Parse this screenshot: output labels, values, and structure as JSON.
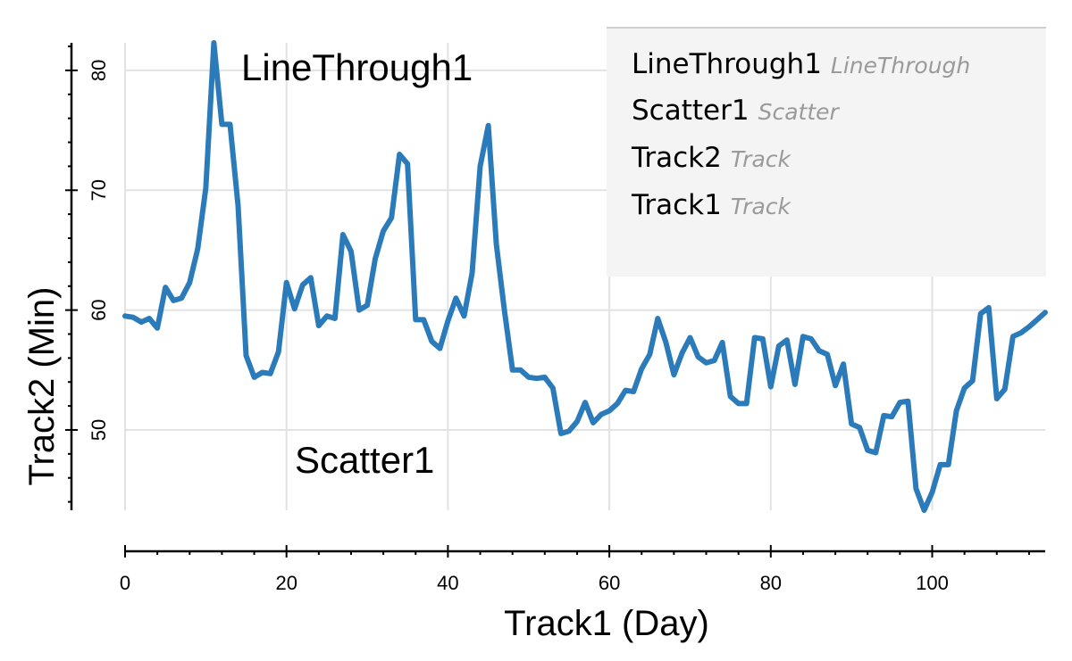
{
  "chart_data": {
    "type": "line",
    "xlabel": "Track1 (Day)",
    "ylabel": "Track2 (Min)",
    "xlim": [
      0,
      114
    ],
    "ylim": [
      43.3,
      82.3
    ],
    "xticks": [
      0,
      20,
      40,
      60,
      80,
      100
    ],
    "yticks": [
      50,
      60,
      70,
      80
    ],
    "grid": true,
    "annotations": [
      "LineThrough1",
      "Scatter1"
    ],
    "legend": {
      "placement": "top-right",
      "entries": [
        {
          "name": "LineThrough1",
          "type": "LineThrough"
        },
        {
          "name": "Scatter1",
          "type": "Scatter"
        },
        {
          "name": "Track2",
          "type": "Track"
        },
        {
          "name": "Track1",
          "type": "Track"
        }
      ]
    },
    "series": [
      {
        "color": "#2b7bba",
        "x": [
          0,
          1,
          2,
          3,
          4,
          5,
          6,
          7,
          8,
          9,
          10,
          11,
          12,
          13,
          14,
          15,
          16,
          17,
          18,
          19,
          20,
          21,
          22,
          23,
          24,
          25,
          26,
          27,
          28,
          29,
          30,
          31,
          32,
          33,
          34,
          35,
          36,
          37,
          38,
          39,
          40,
          41,
          42,
          43,
          44,
          45,
          46,
          47,
          48,
          49,
          50,
          51,
          52,
          53,
          54,
          55,
          56,
          57,
          58,
          59,
          60,
          61,
          62,
          63,
          64,
          65,
          66,
          67,
          68,
          69,
          70,
          71,
          72,
          73,
          74,
          75,
          76,
          77,
          78,
          79,
          80,
          81,
          82,
          83,
          84,
          85,
          86,
          87,
          88,
          89,
          90,
          91,
          92,
          93,
          94,
          95,
          96,
          97,
          98,
          99,
          100,
          101,
          102,
          103,
          104,
          105,
          106,
          107,
          108,
          109,
          110,
          111,
          112,
          113,
          114
        ],
        "y": [
          59.5,
          59.4,
          59.0,
          59.3,
          58.5,
          61.9,
          60.8,
          61.0,
          62.3,
          65.1,
          70.2,
          82.3,
          75.5,
          75.5,
          68.7,
          56.2,
          54.4,
          54.8,
          54.7,
          56.5,
          62.3,
          60.1,
          62.1,
          62.7,
          58.7,
          59.5,
          59.3,
          66.3,
          64.9,
          60.0,
          60.4,
          64.3,
          66.6,
          67.7,
          73.0,
          72.2,
          59.2,
          59.2,
          57.4,
          56.8,
          59.1,
          61.0,
          59.5,
          63.1,
          72.0,
          75.4,
          65.5,
          60.0,
          55.0,
          55.0,
          54.4,
          54.3,
          54.4,
          53.5,
          49.7,
          49.9,
          50.7,
          52.3,
          50.6,
          51.3,
          51.6,
          52.2,
          53.3,
          53.2,
          55.1,
          56.3,
          59.3,
          57.3,
          54.6,
          56.4,
          57.7,
          56.1,
          55.6,
          55.8,
          57.3,
          52.8,
          52.2,
          52.2,
          57.7,
          57.6,
          53.6,
          57.0,
          57.5,
          53.8,
          57.8,
          57.6,
          56.6,
          56.3,
          53.7,
          55.5,
          50.5,
          50.2,
          48.3,
          48.1,
          51.2,
          51.1,
          52.3,
          52.4,
          45.1,
          43.3,
          44.8,
          47.1,
          47.1,
          51.6,
          53.5,
          54.1,
          59.7,
          60.2,
          52.6,
          53.4,
          57.8,
          58.1,
          58.6,
          59.2,
          59.8
        ]
      }
    ]
  }
}
